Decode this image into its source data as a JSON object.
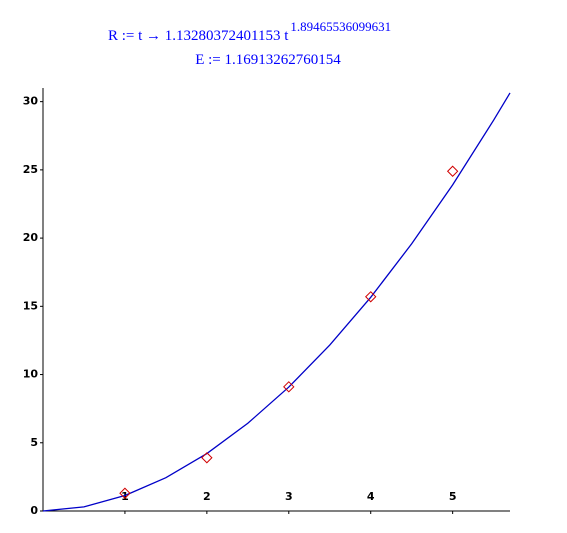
{
  "chart_data": {
    "type": "line",
    "formula": {
      "text": "R := t → 1.13280372401153 t",
      "exponent": "1.89465536099631"
    },
    "subtitle": "E := 1.16913262760154",
    "xlim": [
      0,
      5.7
    ],
    "ylim": [
      0,
      31
    ],
    "xticks": [
      1,
      2,
      3,
      4,
      5
    ],
    "yticks": [
      0,
      5,
      10,
      15,
      20,
      25,
      30
    ],
    "grid": false,
    "series": [
      {
        "type": "line",
        "color": "#0000c8",
        "x": [
          0,
          0.5,
          1,
          1.5,
          2,
          2.5,
          3,
          3.5,
          4,
          4.5,
          5,
          5.5,
          5.7
        ],
        "values": [
          0,
          0.305,
          1.133,
          2.442,
          4.212,
          6.429,
          9.081,
          12.161,
          15.661,
          19.583,
          23.9,
          28.64,
          30.64
        ]
      },
      {
        "type": "scatter",
        "marker": "diamond",
        "color": "#d00000",
        "x": [
          1,
          2,
          3,
          4,
          5
        ],
        "values": [
          1.3,
          3.9,
          9.1,
          15.7,
          24.9
        ]
      }
    ]
  }
}
